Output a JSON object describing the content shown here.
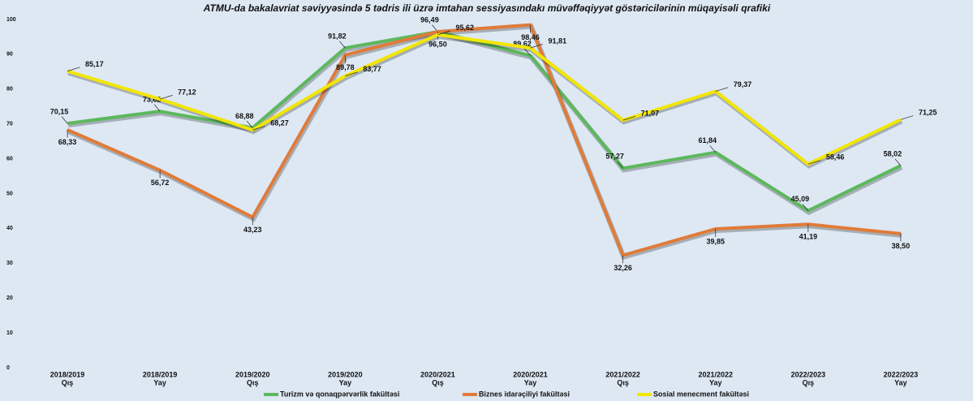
{
  "chart_data": {
    "type": "line",
    "title": "ATMU-da bakalavriat səviyyəsində 5 tədris ili üzrə imtahan sessiyasındakı müvəffəqiyyət göstəricilərinin müqayisəli qrafiki",
    "categories": [
      [
        "2018/2019",
        "Qış"
      ],
      [
        "2018/2019",
        "Yay"
      ],
      [
        "2019/2020",
        "Qış"
      ],
      [
        "2019/2020",
        "Yay"
      ],
      [
        "2020/2021",
        "Qış"
      ],
      [
        "2020/2021",
        "Yay"
      ],
      [
        "2021/2022",
        "Qış"
      ],
      [
        "2021/2022",
        "Yay"
      ],
      [
        "2022/2023",
        "Qış"
      ],
      [
        "2022/2023",
        "Yay"
      ]
    ],
    "series": [
      {
        "name": "Turizm və qonaqpərvərlik fakültəsi",
        "color": "#5cb85c",
        "values": [
          70.15,
          73.62,
          68.88,
          91.82,
          96.49,
          89.62,
          57.27,
          61.84,
          45.09,
          58.02
        ],
        "value_labels": [
          "70,15",
          "73,62",
          "68,88",
          "91,82",
          "96,49",
          "89,62",
          "57,27",
          "61,84",
          "45,09",
          "58,02"
        ]
      },
      {
        "name": "Biznes idarəçiliyi fakültəsi",
        "color": "#e07b39",
        "values": [
          68.33,
          56.72,
          43.23,
          89.78,
          96.5,
          98.46,
          32.26,
          39.85,
          41.19,
          38.5
        ],
        "value_labels": [
          "68,33",
          "56,72",
          "43,23",
          "89,78",
          "96,50",
          "98,46",
          "32,26",
          "39,85",
          "41,19",
          "38,50"
        ]
      },
      {
        "name": "Sosial menecment fakültəsi",
        "color": "#f2e600",
        "values": [
          85.17,
          77.12,
          68.27,
          83.77,
          95.62,
          91.81,
          71.07,
          79.37,
          58.46,
          71.25
        ],
        "value_labels": [
          "85,17",
          "77,12",
          "68,27",
          "83,77",
          "95,62",
          "91,81",
          "71,07",
          "79,37",
          "58,46",
          "71,25"
        ]
      }
    ],
    "ylim": [
      0,
      100
    ],
    "yticks": [
      0,
      10,
      20,
      30,
      40,
      50,
      60,
      70,
      80,
      90,
      100
    ],
    "legend": "bottom"
  }
}
